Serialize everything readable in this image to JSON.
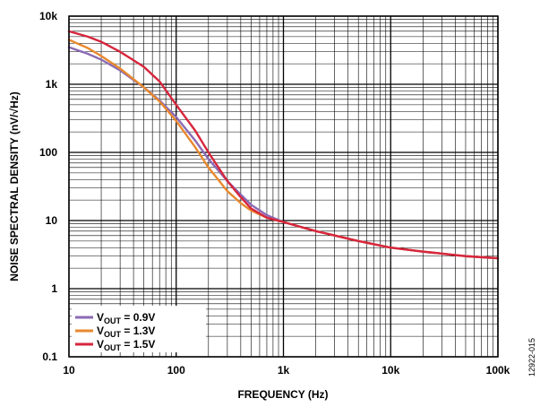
{
  "chart_data": {
    "type": "line",
    "xscale": "log",
    "yscale": "log",
    "xlim": [
      10,
      100000
    ],
    "ylim": [
      0.1,
      10000
    ],
    "xlabel": "FREQUENCY (Hz)",
    "ylabel": "NOISE SPECTRAL DENSITY (nV/√Hz)",
    "x_ticks": [
      "10",
      "100",
      "1k",
      "10k",
      "100k"
    ],
    "y_ticks": [
      "0.1",
      "1",
      "10",
      "100",
      "1k",
      "10k"
    ],
    "grid": true,
    "legend_position": "bottom-left",
    "figure_id": "12922-015",
    "series": [
      {
        "name": "VOUT = 0.9V",
        "legend": {
          "prefix": "V",
          "sub": "OUT",
          "suffix": " = 0.9V"
        },
        "color": "#8B6BB5",
        "x": [
          10,
          15,
          20,
          30,
          50,
          70,
          100,
          150,
          200,
          300,
          400,
          500,
          700,
          1000,
          2000,
          5000,
          10000,
          20000,
          50000,
          100000
        ],
        "y": [
          3500,
          2800,
          2300,
          1600,
          900,
          580,
          330,
          150,
          80,
          38,
          24,
          17,
          12,
          9.5,
          7,
          5,
          4,
          3.5,
          3,
          2.8
        ]
      },
      {
        "name": "VOUT = 1.3V",
        "legend": {
          "prefix": "V",
          "sub": "OUT",
          "suffix": " = 1.3V"
        },
        "color": "#E8892E",
        "x": [
          10,
          15,
          20,
          30,
          50,
          70,
          100,
          150,
          200,
          300,
          400,
          500,
          700,
          1000,
          2000,
          5000,
          10000,
          20000,
          50000,
          100000
        ],
        "y": [
          4500,
          3400,
          2600,
          1700,
          900,
          560,
          290,
          120,
          60,
          27,
          18,
          14,
          11,
          9.5,
          7,
          5,
          4,
          3.5,
          3,
          2.8
        ]
      },
      {
        "name": "VOUT = 1.5V",
        "legend": {
          "prefix": "V",
          "sub": "OUT",
          "suffix": " = 1.5V"
        },
        "color": "#D7263D",
        "x": [
          10,
          15,
          20,
          30,
          50,
          70,
          100,
          150,
          200,
          300,
          400,
          500,
          700,
          1000,
          2000,
          5000,
          10000,
          20000,
          50000,
          100000
        ],
        "y": [
          6000,
          5000,
          4200,
          3000,
          1800,
          1100,
          500,
          210,
          100,
          38,
          22,
          15,
          11,
          9.5,
          7,
          5,
          4,
          3.5,
          3,
          2.8
        ]
      }
    ]
  }
}
